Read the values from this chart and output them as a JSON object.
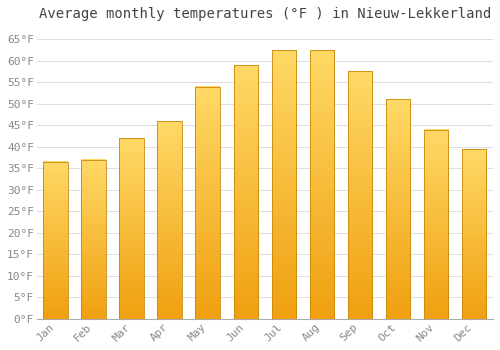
{
  "title": "Average monthly temperatures (°F ) in Nieuw-Lekkerland",
  "months": [
    "Jan",
    "Feb",
    "Mar",
    "Apr",
    "May",
    "Jun",
    "Jul",
    "Aug",
    "Sep",
    "Oct",
    "Nov",
    "Dec"
  ],
  "values": [
    36.5,
    37.0,
    42.0,
    46.0,
    54.0,
    59.0,
    62.5,
    62.5,
    57.5,
    51.0,
    44.0,
    39.5
  ],
  "bar_color_top": "#FFD966",
  "bar_color_bottom": "#F0A010",
  "bar_edge_color": "#C8880A",
  "background_color": "#FFFFFF",
  "grid_color": "#DDDDDD",
  "ytick_labels": [
    "0°F",
    "5°F",
    "10°F",
    "15°F",
    "20°F",
    "25°F",
    "30°F",
    "35°F",
    "40°F",
    "45°F",
    "50°F",
    "55°F",
    "60°F",
    "65°F"
  ],
  "ytick_values": [
    0,
    5,
    10,
    15,
    20,
    25,
    30,
    35,
    40,
    45,
    50,
    55,
    60,
    65
  ],
  "ylim": [
    0,
    68
  ],
  "title_fontsize": 10,
  "tick_fontsize": 8,
  "title_color": "#444444",
  "tick_color": "#888888"
}
